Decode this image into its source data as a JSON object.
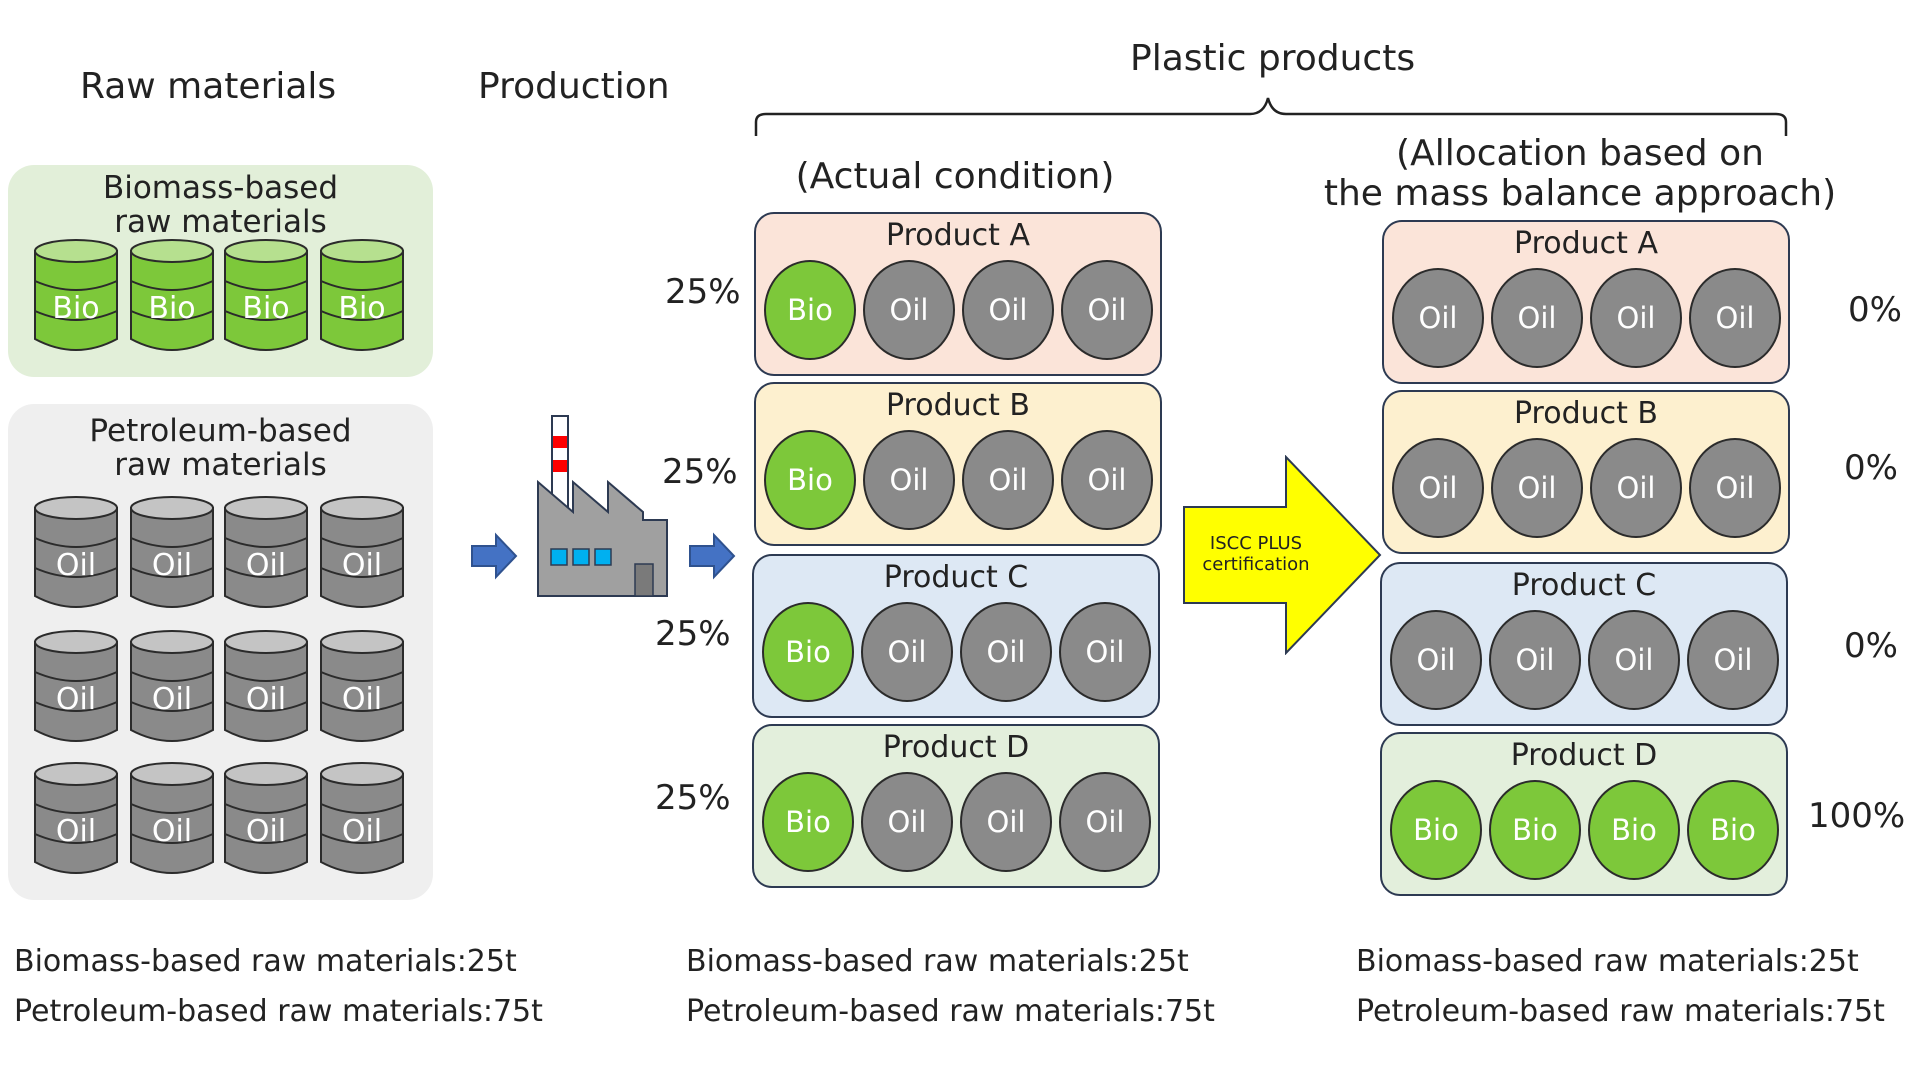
{
  "headers": {
    "raw_materials": "Raw materials",
    "production": "Production",
    "plastic_products": "Plastic products",
    "actual": "(Actual condition)",
    "allocation_line1": "(Allocation based on",
    "allocation_line2": "the mass balance approach)"
  },
  "raw": {
    "biomass_title_line1": "Biomass-based",
    "biomass_title_line2": "raw materials",
    "petroleum_title_line1": "Petroleum-based",
    "petroleum_title_line2": "raw materials",
    "bio_label": "Bio",
    "oil_label": "Oil"
  },
  "colors": {
    "bio": "#7dc83a",
    "oil": "#8a8a8a",
    "biomass_panel": "#e2efd9",
    "petroleum_panel": "#efefef",
    "arrow_blue": "#4472c4",
    "iscc_yellow": "#ffff00"
  },
  "actual_products": [
    {
      "name": "Product A",
      "percent": "25%",
      "items": [
        "Bio",
        "Oil",
        "Oil",
        "Oil"
      ]
    },
    {
      "name": "Product B",
      "percent": "25%",
      "items": [
        "Bio",
        "Oil",
        "Oil",
        "Oil"
      ]
    },
    {
      "name": "Product C",
      "percent": "25%",
      "items": [
        "Bio",
        "Oil",
        "Oil",
        "Oil"
      ]
    },
    {
      "name": "Product D",
      "percent": "25%",
      "items": [
        "Bio",
        "Oil",
        "Oil",
        "Oil"
      ]
    }
  ],
  "allocated_products": [
    {
      "name": "Product A",
      "percent": "0%",
      "items": [
        "Oil",
        "Oil",
        "Oil",
        "Oil"
      ]
    },
    {
      "name": "Product B",
      "percent": "0%",
      "items": [
        "Oil",
        "Oil",
        "Oil",
        "Oil"
      ]
    },
    {
      "name": "Product C",
      "percent": "0%",
      "items": [
        "Oil",
        "Oil",
        "Oil",
        "Oil"
      ]
    },
    {
      "name": "Product D",
      "percent": "100%",
      "items": [
        "Bio",
        "Bio",
        "Bio",
        "Bio"
      ]
    }
  ],
  "iscc": {
    "line1": "ISCC PLUS",
    "line2": "certification"
  },
  "footers": {
    "biomass": "Biomass-based raw materials:25t",
    "petroleum": "Petroleum-based raw materials:75t"
  }
}
